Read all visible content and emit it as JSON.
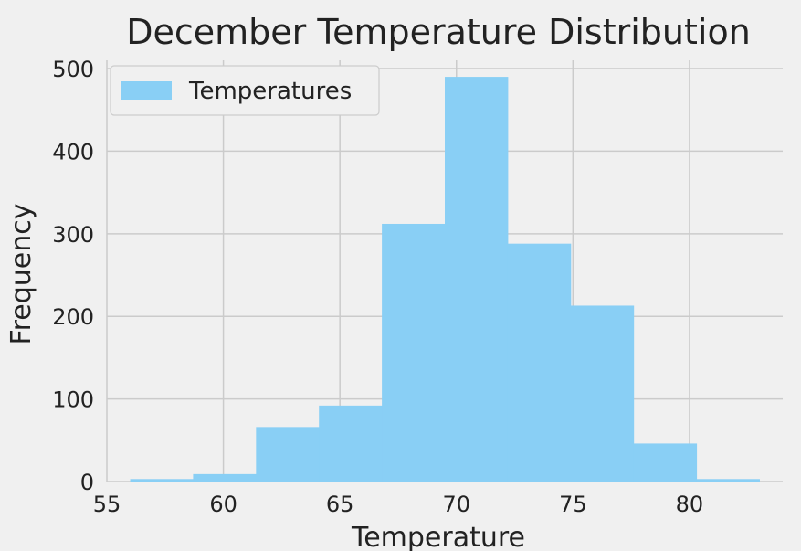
{
  "chart_data": {
    "type": "histogram",
    "title": "December Temperature Distribution",
    "xlabel": "Temperature",
    "ylabel": "Frequency",
    "xlim": [
      55,
      84
    ],
    "ylim": [
      0,
      510
    ],
    "xticks": [
      55,
      60,
      65,
      70,
      75,
      80
    ],
    "yticks": [
      0,
      100,
      200,
      300,
      400,
      500
    ],
    "bin_edges": [
      56.0,
      58.7,
      61.4,
      64.1,
      66.8,
      69.5,
      72.2,
      74.9,
      77.6,
      80.3,
      83.0
    ],
    "series": [
      {
        "name": "Temperatures",
        "color": "#89CFF5",
        "values": [
          3,
          9,
          66,
          92,
          312,
          490,
          288,
          213,
          46,
          3
        ]
      }
    ],
    "grid": true,
    "legend_position": "upper-left",
    "background": "#f0f0f0",
    "gridcolor": "#cbcbcb"
  }
}
